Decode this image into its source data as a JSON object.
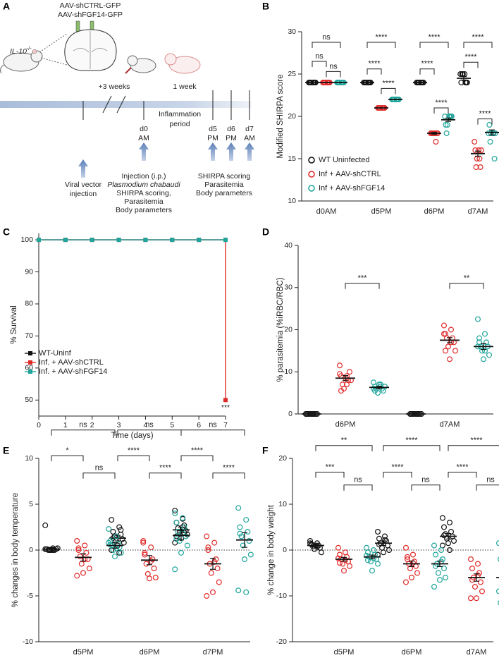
{
  "panel_labels": [
    "A",
    "B",
    "C",
    "D",
    "E",
    "F"
  ],
  "diagram": {
    "vectors": [
      "AAV-shCTRL-GFP",
      "AAV-shFGF14-GFP"
    ],
    "strain": "IL-10",
    "strain_sup": "-/-",
    "intervals": [
      "+3 weeks",
      "1 week"
    ],
    "period": [
      "Inflammation",
      "period"
    ],
    "timepoints": [
      [
        "d0",
        "AM"
      ],
      [
        "d5",
        "PM"
      ],
      [
        "d6",
        "PM"
      ],
      [
        "d7",
        "AM"
      ]
    ],
    "step1": [
      "Viral vector",
      "injection"
    ],
    "step2": [
      "Injection (i.p.)",
      "Plasmodium chabaudi",
      "SHIRPA scoring,",
      "Parasitemia",
      "Body parameters"
    ],
    "step3": [
      "SHIRPA scoring",
      "Parasitemia",
      "Body parameters"
    ]
  },
  "chart_data": [
    {
      "type": "strip",
      "ylabel": "Modified SHIRPA score",
      "categories": [
        "d0AM",
        "d5PM",
        "d6PM",
        "d7AM"
      ],
      "ylim": [
        10,
        30
      ],
      "yticks": [
        10,
        15,
        20,
        25,
        30
      ],
      "legend": "lower-left",
      "series": [
        {
          "name": "WT Uninfected",
          "color": "#111111",
          "values": [
            24,
            24,
            24,
            24.5
          ],
          "errors": [
            0,
            0,
            0,
            0.2
          ],
          "points": [
            [
              24,
              24,
              24,
              24,
              24,
              24,
              24,
              24
            ],
            [
              24,
              24,
              24,
              24,
              24,
              24,
              24,
              24
            ],
            [
              24,
              24,
              24,
              24,
              24,
              24,
              24,
              24
            ],
            [
              25,
              25,
              24,
              24,
              25,
              24,
              25,
              24
            ]
          ]
        },
        {
          "name": "Inf + AAV-shCTRL",
          "color": "#e02a2a",
          "values": [
            24,
            21,
            18,
            15.6
          ],
          "errors": [
            0,
            0,
            0.1,
            0.3
          ],
          "points": [
            [
              24,
              24,
              24,
              24,
              24,
              24,
              24,
              24
            ],
            [
              21,
              21,
              21,
              21,
              21,
              21,
              21,
              21
            ],
            [
              18,
              18,
              18,
              17,
              18,
              18,
              18,
              18
            ],
            [
              17,
              16,
              16,
              15,
              14,
              14,
              15,
              16
            ]
          ]
        },
        {
          "name": "Inf + AAV-shFGF14",
          "color": "#1fa59b",
          "values": [
            24,
            22,
            19.6,
            18.1
          ],
          "errors": [
            0,
            0,
            0.2,
            0.3
          ],
          "points": [
            [
              24,
              24,
              24,
              24,
              24,
              24,
              24,
              24
            ],
            [
              22,
              22,
              22,
              22,
              22,
              22,
              22,
              22
            ],
            [
              20,
              20,
              19,
              20,
              18,
              20,
              19,
              20
            ],
            [
              18,
              18,
              19,
              18,
              17,
              15,
              18,
              18
            ]
          ]
        }
      ],
      "significance": [
        "ns",
        "ns",
        "ns",
        "****",
        "****",
        "****",
        "****",
        "****",
        "****",
        "****",
        "****",
        "****"
      ]
    },
    {
      "type": "line",
      "step": true,
      "marker": "square",
      "xlabel": "Time (days)",
      "ylabel": "% Survival",
      "x": [
        0,
        1,
        2,
        3,
        4,
        5,
        6,
        7
      ],
      "xlim": [
        0,
        7
      ],
      "xticks": [
        0,
        1,
        2,
        3,
        4,
        5,
        6,
        7
      ],
      "ylim": [
        45,
        102
      ],
      "yticks": [
        50,
        60,
        70,
        80,
        90,
        100
      ],
      "legend": "center-left",
      "series": [
        {
          "name": "WT-Uninf",
          "color": "#111111",
          "values": [
            100,
            100,
            100,
            100,
            100,
            100,
            100,
            100
          ]
        },
        {
          "name": "Inf. + AAV-shCTRL",
          "color": "#e02a2a",
          "values": [
            100,
            100,
            100,
            100,
            100,
            100,
            100,
            50
          ]
        },
        {
          "name": "Inf. + AAV-shFGF14",
          "color": "#1fa59b",
          "values": [
            100,
            100,
            100,
            100,
            100,
            100,
            100,
            100
          ]
        }
      ],
      "annotation": "***"
    },
    {
      "type": "strip",
      "ylabel": "% parasitemia (%iRBC/RBC)",
      "categories": [
        "d6PM",
        "d7AM"
      ],
      "ylim": [
        0,
        40
      ],
      "yticks": [
        0,
        10,
        20,
        30,
        40
      ],
      "series": [
        {
          "color": "#111111",
          "values": [
            0,
            0
          ],
          "errors": [
            0,
            0
          ],
          "points": [
            [
              0,
              0,
              0,
              0,
              0,
              0,
              0,
              0,
              0,
              0,
              0,
              0
            ],
            [
              0,
              0,
              0,
              0,
              0,
              0,
              0,
              0,
              0,
              0,
              0,
              0
            ]
          ]
        },
        {
          "color": "#e02a2a",
          "values": [
            8.5,
            17.5
          ],
          "errors": [
            0.6,
            0.6
          ],
          "points": [
            [
              11.5,
              9,
              9,
              8,
              7,
              10,
              6,
              8,
              8.5,
              9.5,
              7,
              5.5
            ],
            [
              21,
              20,
              19,
              18,
              18,
              17,
              16,
              15,
              13,
              19,
              17,
              15
            ]
          ]
        },
        {
          "color": "#1fa59b",
          "values": [
            6.3,
            16
          ],
          "errors": [
            0.3,
            0.7
          ],
          "points": [
            [
              7.5,
              7,
              6.5,
              6,
              6,
              5.5,
              5,
              6.5,
              7,
              6,
              6.5,
              5.5
            ],
            [
              22.5,
              19,
              18,
              17,
              16,
              16,
              15,
              14,
              13,
              16,
              15,
              17
            ]
          ]
        }
      ],
      "significance": [
        "***",
        "**"
      ]
    },
    {
      "type": "strip",
      "ylabel": "% changes in body temperature",
      "zero_line": true,
      "categories": [
        "d5PM",
        "d6PM",
        "d7PM"
      ],
      "ylim": [
        -10,
        10
      ],
      "yticks": [
        -10,
        -5,
        0,
        5,
        10
      ],
      "series": [
        {
          "color": "#111111",
          "values": [
            0.1,
            1.3,
            2.2
          ],
          "errors": [
            0.2,
            0.3,
            0.3
          ],
          "points": [
            [
              2.7,
              0.2,
              0.1,
              0,
              0,
              0.1,
              0,
              0.2,
              0,
              0.1,
              0,
              0.1
            ],
            [
              3.3,
              2.5,
              2,
              1.7,
              1.5,
              1.2,
              1,
              0.8,
              0.5,
              0,
              -0.3,
              1.3,
              2.2
            ],
            [
              4.3,
              3.4,
              3,
              2.7,
              2.4,
              2.1,
              2,
              1.7,
              1.3,
              0.8,
              2.5,
              1.5,
              1.9
            ]
          ]
        },
        {
          "color": "#e02a2a",
          "values": [
            -0.8,
            -1.1,
            -1.5
          ],
          "errors": [
            0.4,
            0.5,
            0.6
          ],
          "points": [
            [
              1,
              0.5,
              0,
              -0.3,
              -0.7,
              -1,
              -1.5,
              -2,
              -2.5,
              -2.8,
              -1,
              0.2
            ],
            [
              1,
              0.3,
              -0.5,
              -1,
              -1.5,
              -2,
              -2.6,
              -3,
              -3.1,
              0.8,
              -1.2,
              -0.3
            ],
            [
              1.5,
              0.8,
              0,
              -1,
              -1.5,
              -2,
              -2.5,
              -3.5,
              -4.6,
              -5,
              -1.3,
              0.3
            ]
          ]
        },
        {
          "color": "#1fa59b",
          "values": [
            0.5,
            1.6,
            1.1
          ],
          "errors": [
            0.3,
            0.5,
            0.8
          ],
          "points": [
            [
              2.3,
              1.5,
              1,
              0.7,
              0.5,
              0.3,
              0,
              -0.3,
              -0.7,
              0.8,
              0.2,
              0.6
            ],
            [
              4,
              3.5,
              3,
              2.5,
              2,
              1.5,
              1,
              0.5,
              -0.3,
              -2.1,
              1.8,
              1.2
            ],
            [
              4.6,
              3.3,
              2.5,
              2,
              1.5,
              1,
              0.5,
              -0.5,
              -1,
              -4.4,
              -4.6,
              1.8
            ]
          ]
        }
      ],
      "significance": [
        "ns",
        "*",
        "ns",
        "ns",
        "****",
        "****",
        "ns",
        "****",
        "****"
      ]
    },
    {
      "type": "strip",
      "ylabel": "% change in body weight",
      "zero_line": true,
      "categories": [
        "d5PM",
        "d6PM",
        "d7AM"
      ],
      "ylim": [
        -20,
        20
      ],
      "yticks": [
        -20,
        -10,
        0,
        10,
        20
      ],
      "series": [
        {
          "color": "#111111",
          "values": [
            1,
            1.5,
            3
          ],
          "errors": [
            0.3,
            0.5,
            0.6
          ],
          "points": [
            [
              2,
              1.5,
              1.2,
              1,
              0.8,
              0.5,
              0.2,
              -0.5,
              1,
              1.5,
              0.7,
              1.3
            ],
            [
              4,
              3,
              2.5,
              2,
              1.5,
              1,
              0.5,
              0,
              -0.5,
              -1,
              2.2,
              1.2
            ],
            [
              7,
              6,
              5,
              4,
              3.5,
              3,
              2.5,
              2,
              1.5,
              1,
              0,
              3.2
            ]
          ]
        },
        {
          "color": "#e02a2a",
          "values": [
            -2,
            -3,
            -6
          ],
          "errors": [
            0.4,
            0.6,
            0.8
          ],
          "points": [
            [
              0.5,
              -0.5,
              -1,
              -1.5,
              -2,
              -2.5,
              -3,
              -3.5,
              -4.5,
              -1.8,
              -2.2,
              -2.8
            ],
            [
              0.5,
              -1,
              -2,
              -2.5,
              -3,
              -3.5,
              -4,
              -5,
              -6,
              -7,
              -2.8,
              -1.5
            ],
            [
              -2,
              -3,
              -4,
              -5,
              -6,
              -7,
              -8,
              -9,
              -10.5,
              -10.5,
              -5.5,
              -6.5
            ]
          ]
        },
        {
          "color": "#1fa59b",
          "values": [
            -1.5,
            -3,
            -6
          ],
          "errors": [
            0.4,
            0.6,
            0.9
          ],
          "points": [
            [
              0.5,
              0,
              -0.5,
              -1,
              -1.5,
              -2,
              -2.5,
              -3,
              -4.5,
              -1.2,
              -1.8,
              -2.2
            ],
            [
              1,
              0,
              -1,
              -2,
              -3,
              -4,
              -5,
              -6,
              -6.5,
              -8,
              -2.5,
              -3.5
            ],
            [
              1.5,
              0,
              -2,
              -3,
              -4,
              -5,
              -6,
              -7,
              -8,
              -9,
              -10,
              -11.5
            ]
          ]
        }
      ],
      "significance": [
        "**",
        "***",
        "ns",
        "****",
        "****",
        "ns",
        "****",
        "****",
        "ns"
      ]
    }
  ]
}
